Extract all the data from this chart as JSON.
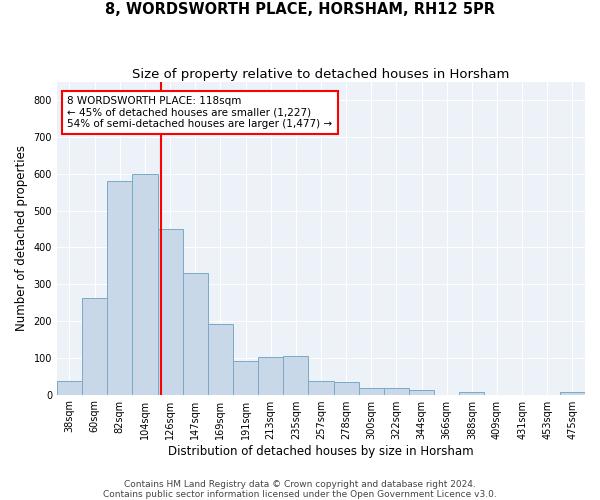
{
  "title": "8, WORDSWORTH PLACE, HORSHAM, RH12 5PR",
  "subtitle": "Size of property relative to detached houses in Horsham",
  "xlabel": "Distribution of detached houses by size in Horsham",
  "ylabel": "Number of detached properties",
  "categories": [
    "38sqm",
    "60sqm",
    "82sqm",
    "104sqm",
    "126sqm",
    "147sqm",
    "169sqm",
    "191sqm",
    "213sqm",
    "235sqm",
    "257sqm",
    "278sqm",
    "300sqm",
    "322sqm",
    "344sqm",
    "366sqm",
    "388sqm",
    "409sqm",
    "431sqm",
    "453sqm",
    "475sqm"
  ],
  "values": [
    38,
    263,
    580,
    600,
    450,
    330,
    193,
    90,
    102,
    105,
    37,
    33,
    18,
    17,
    12,
    0,
    7,
    0,
    0,
    0,
    8
  ],
  "bar_color": "#c8d8e8",
  "bar_edgecolor": "#7aaac8",
  "bar_linewidth": 0.7,
  "vline_color": "red",
  "annotation_text": "8 WORDSWORTH PLACE: 118sqm\n← 45% of detached houses are smaller (1,227)\n54% of semi-detached houses are larger (1,477) →",
  "annotation_box_color": "white",
  "annotation_border_color": "red",
  "ylim": [
    0,
    850
  ],
  "yticks": [
    0,
    100,
    200,
    300,
    400,
    500,
    600,
    700,
    800
  ],
  "plot_background": "#edf2f9",
  "grid_color": "white",
  "footer": "Contains HM Land Registry data © Crown copyright and database right 2024.\nContains public sector information licensed under the Open Government Licence v3.0.",
  "title_fontsize": 10.5,
  "subtitle_fontsize": 9.5,
  "xlabel_fontsize": 8.5,
  "ylabel_fontsize": 8.5,
  "tick_fontsize": 7,
  "annotation_fontsize": 7.5,
  "footer_fontsize": 6.5
}
